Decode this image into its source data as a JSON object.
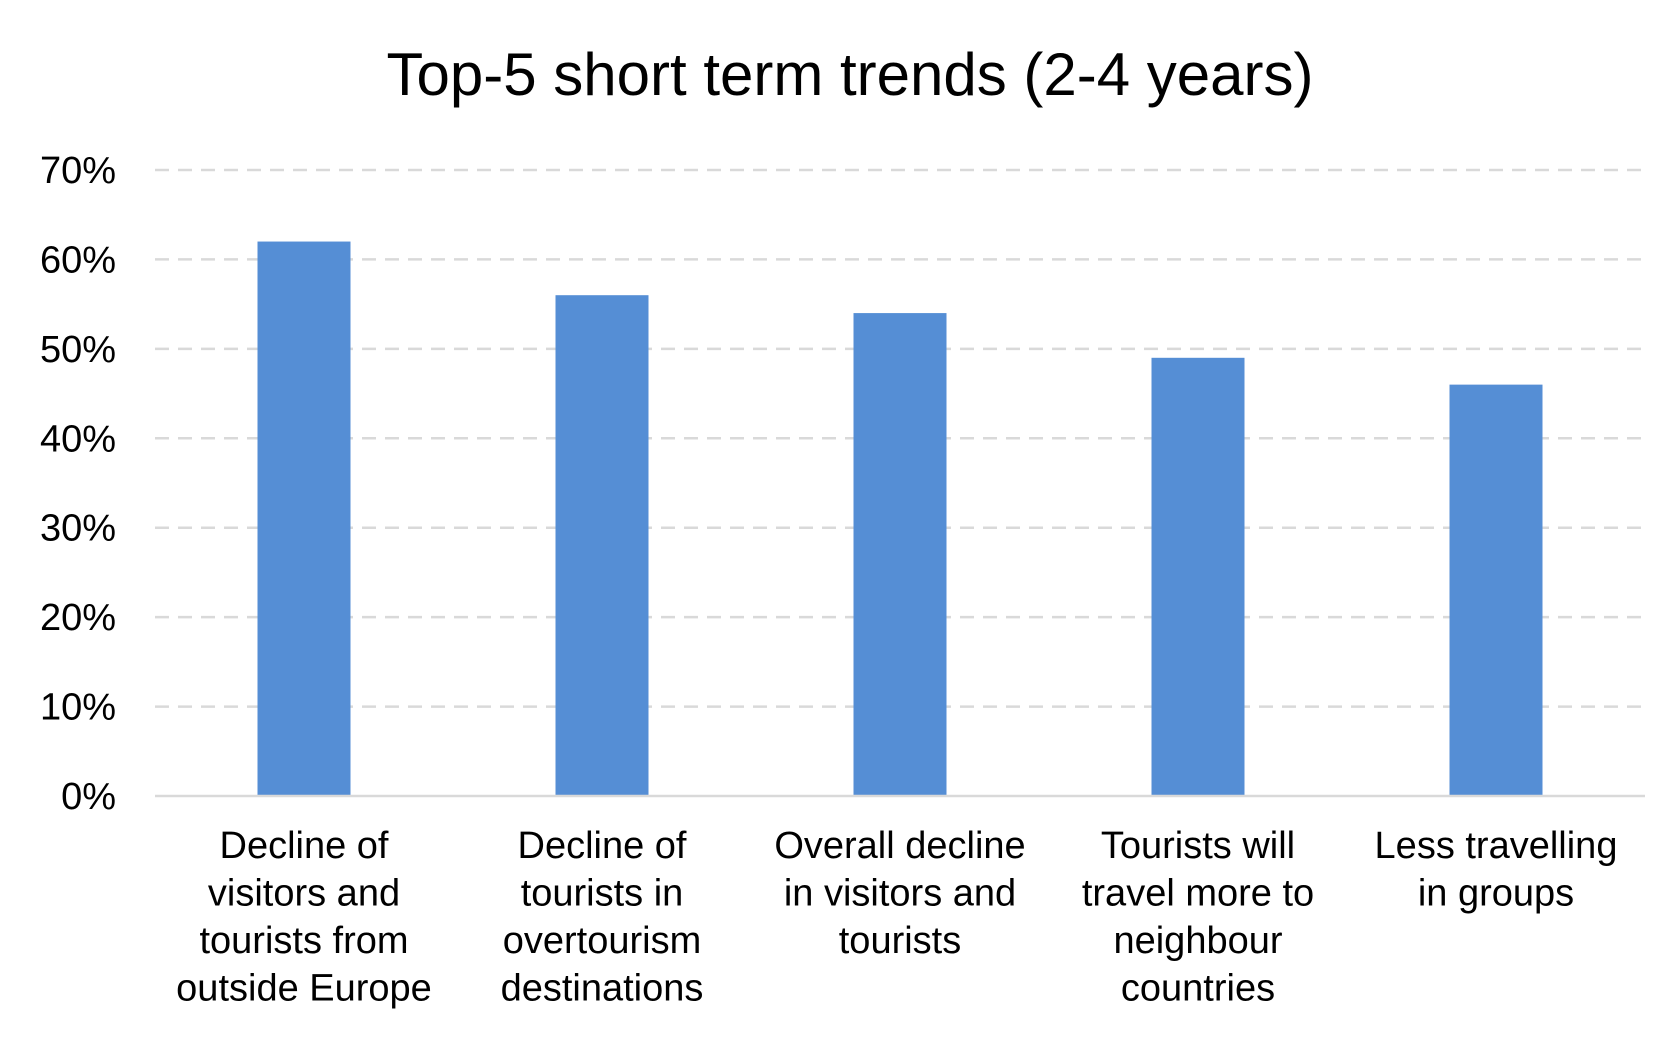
{
  "chart_data": {
    "type": "bar",
    "title": "Top-5 short term trends (2-4 years)",
    "xlabel": "",
    "ylabel": "",
    "ylim": [
      0,
      0.7
    ],
    "y_ticks": [
      "0%",
      "10%",
      "20%",
      "30%",
      "40%",
      "50%",
      "60%",
      "70%"
    ],
    "y_tick_values": [
      0,
      0.1,
      0.2,
      0.3,
      0.4,
      0.5,
      0.6,
      0.7
    ],
    "grid": true,
    "legend": "none",
    "bar_color": "#558ed5",
    "categories": [
      [
        "Decline of",
        "visitors and",
        "tourists from",
        "outside Europe"
      ],
      [
        "Decline of",
        "tourists in",
        "overtourism",
        "destinations"
      ],
      [
        "Overall decline",
        "in visitors and",
        "tourists"
      ],
      [
        "Tourists will",
        "travel more to",
        "neighbour",
        "countries"
      ],
      [
        "Less travelling",
        "in groups"
      ]
    ],
    "values": [
      0.62,
      0.56,
      0.54,
      0.49,
      0.46
    ]
  }
}
